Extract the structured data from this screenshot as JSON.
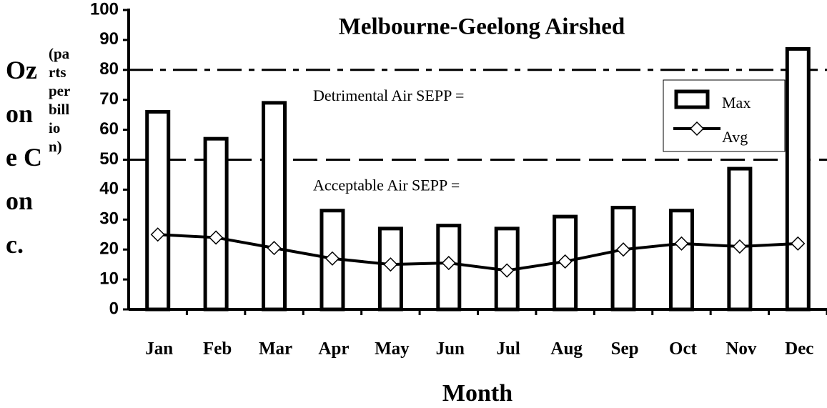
{
  "chart_data": {
    "type": "bar",
    "title": "Melbourne-Geelong Airshed",
    "y_label": "Ozone Conc.",
    "y_label_units": "(parts per billion)",
    "x_label": "Month",
    "categories": [
      "Jan",
      "Feb",
      "Mar",
      "Apr",
      "May",
      "Jun",
      "Jul",
      "Aug",
      "Sep",
      "Oct",
      "Nov",
      "Dec"
    ],
    "series": [
      {
        "name": "Max",
        "type": "bar",
        "color": "#ffffff",
        "values": [
          66,
          57,
          69,
          33,
          27,
          28,
          27,
          31,
          34,
          33,
          47,
          87
        ]
      },
      {
        "name": "Avg",
        "type": "line",
        "color": "#000000",
        "values": [
          25,
          24,
          20.5,
          17,
          15,
          15.5,
          13,
          16,
          20,
          22,
          21,
          22
        ]
      }
    ],
    "reference_lines": [
      {
        "label": "Detrimental Air SEPP =",
        "value": 80,
        "style": "dash-dot"
      },
      {
        "label": "Acceptable Air SEPP =",
        "value": 50,
        "style": "dash"
      }
    ],
    "ylim": [
      0,
      100
    ],
    "yticks": [
      0,
      10,
      20,
      30,
      40,
      50,
      60,
      70,
      80,
      90,
      100
    ],
    "legend": "upper right",
    "grid": false
  }
}
